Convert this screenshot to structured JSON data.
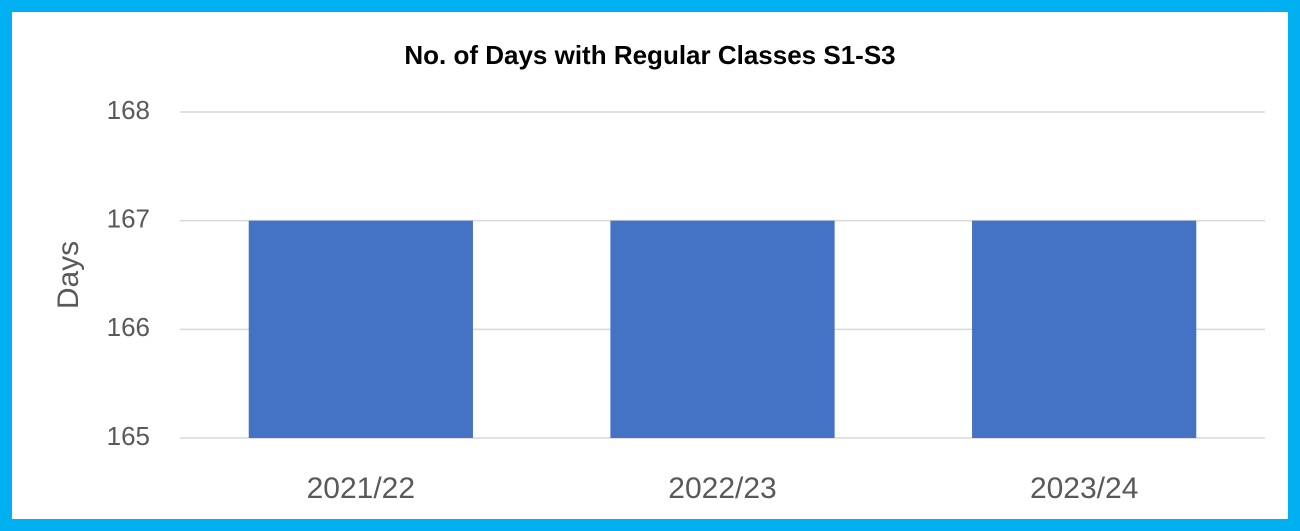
{
  "chart_data": {
    "type": "bar",
    "title": "No. of Days with Regular Classes S1-S3",
    "y_label": "Days",
    "categories": [
      "2021/22",
      "2022/23",
      "2023/24"
    ],
    "values": [
      167,
      167,
      167
    ],
    "color": "#4472c4",
    "ylim": [
      165,
      168
    ],
    "yticks": [
      165,
      166,
      167,
      168
    ],
    "grid": true
  }
}
